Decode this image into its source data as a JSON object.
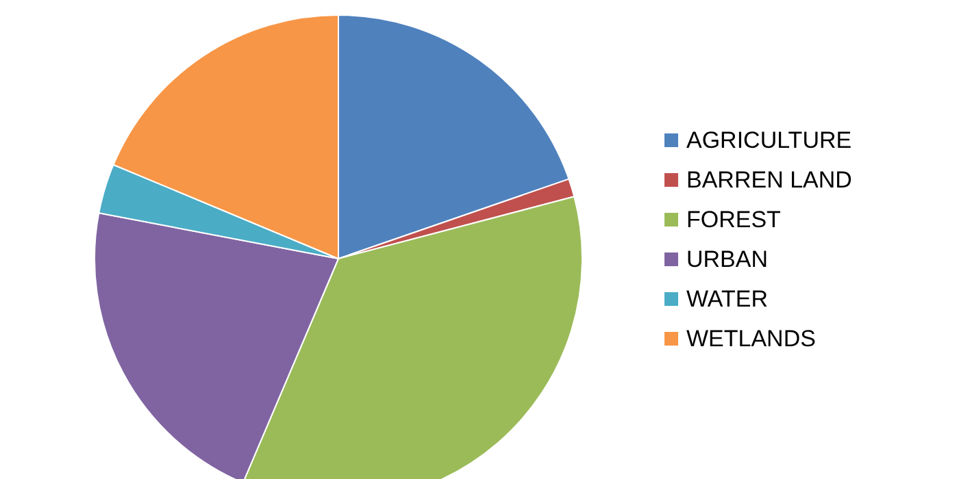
{
  "chart_data": {
    "type": "pie",
    "categories": [
      "AGRICULTURE",
      "BARREN LAND",
      "FOREST",
      "URBAN",
      "WATER",
      "WETLANDS"
    ],
    "values": [
      19.7,
      1.2,
      35.5,
      21.6,
      3.3,
      18.7
    ],
    "colors": [
      "#4f81bd",
      "#c0504d",
      "#9bbb59",
      "#8064a2",
      "#4bacc6",
      "#f79646"
    ],
    "legend": "right"
  }
}
